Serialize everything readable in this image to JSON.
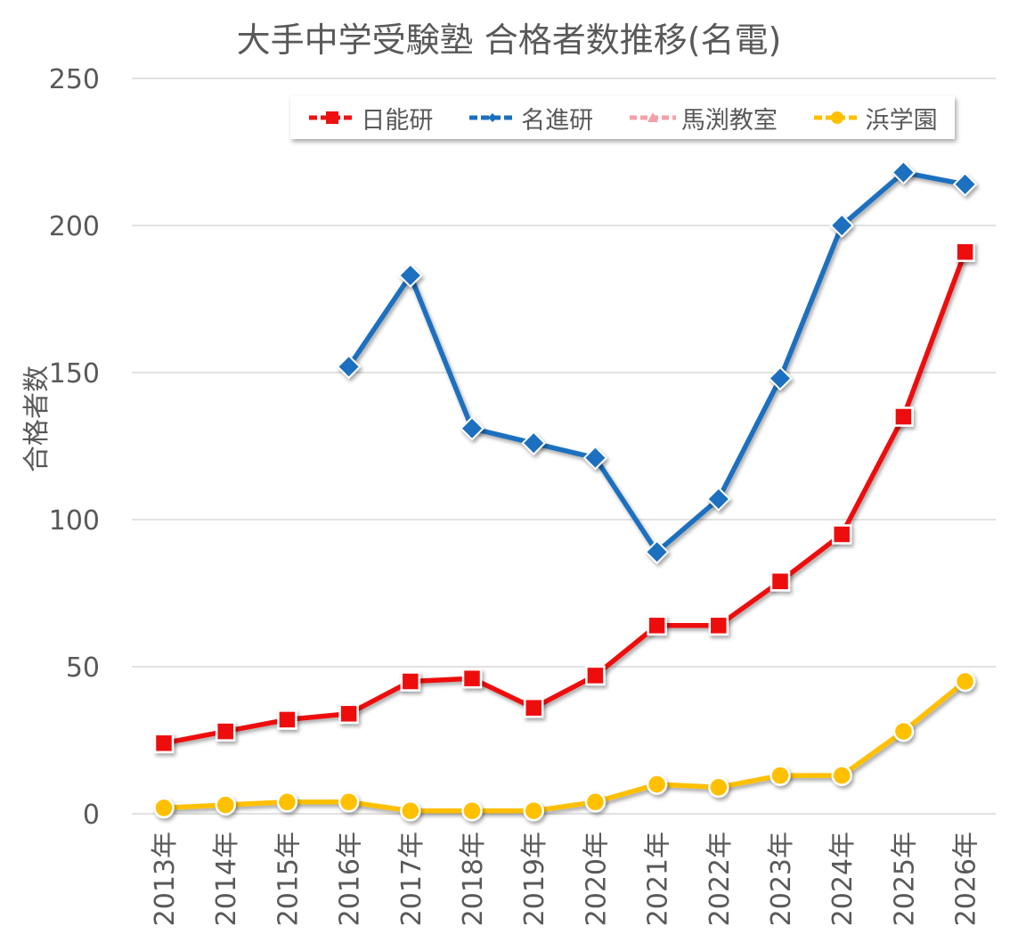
{
  "chart_data": {
    "type": "line",
    "title": "大手中学受験塾 合格者数推移(名電)",
    "xlabel": "",
    "ylabel": "合格者数",
    "ylim": [
      0,
      250
    ],
    "yticks": [
      0,
      50,
      100,
      150,
      200,
      250
    ],
    "grid": true,
    "legend_position": "top-right",
    "categories": [
      "2013年",
      "2014年",
      "2015年",
      "2016年",
      "2017年",
      "2018年",
      "2019年",
      "2020年",
      "2021年",
      "2022年",
      "2023年",
      "2024年",
      "2025年",
      "2026年"
    ],
    "series": [
      {
        "name": "日能研",
        "color": "#EE1111",
        "marker": "square",
        "values": [
          24,
          28,
          32,
          34,
          45,
          46,
          36,
          47,
          64,
          64,
          79,
          95,
          135,
          191
        ]
      },
      {
        "name": "名進研",
        "color": "#1B6FBF",
        "marker": "diamond",
        "values": [
          null,
          null,
          null,
          152,
          183,
          131,
          126,
          121,
          89,
          107,
          148,
          200,
          218,
          214
        ]
      },
      {
        "name": "馬渕教室",
        "color": "#F4A0A6",
        "marker": "triangle",
        "values": [
          null,
          null,
          null,
          null,
          null,
          null,
          null,
          null,
          null,
          null,
          null,
          null,
          null,
          null
        ]
      },
      {
        "name": "浜学園",
        "color": "#FFC000",
        "marker": "circle",
        "values": [
          2,
          3,
          4,
          4,
          1,
          1,
          1,
          4,
          10,
          9,
          13,
          13,
          28,
          45
        ]
      }
    ]
  }
}
